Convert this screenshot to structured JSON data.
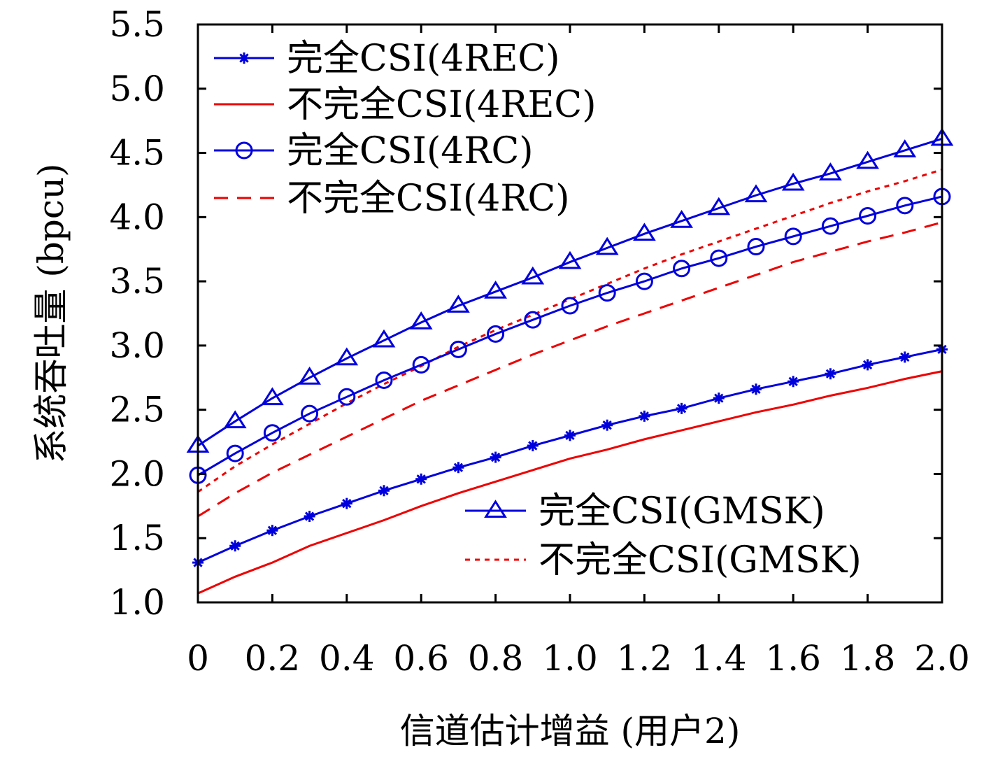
{
  "chart_data": {
    "type": "line",
    "xlabel": "信道估计增益 (用户2)",
    "ylabel": "系统吞吐量 (bpcu)",
    "xlim": [
      0,
      2.0
    ],
    "ylim": [
      1.0,
      5.5
    ],
    "x_ticks": [
      "0",
      "0.2",
      "0.4",
      "0.6",
      "0.8",
      "1.0",
      "1.2",
      "1.4",
      "1.6",
      "1.8",
      "2.0"
    ],
    "y_ticks": [
      "1.0",
      "1.5",
      "2.0",
      "2.5",
      "3.0",
      "3.5",
      "4.0",
      "4.5",
      "5.0",
      "5.5"
    ],
    "legend_top_left": [
      "完全CSI(4REC)",
      "不完全CSI(4REC)",
      "完全CSI(4RC)",
      "不完全CSI(4RC)"
    ],
    "legend_bottom_right": [
      "完全CSI(GMSK)",
      "不完全CSI(GMSK)"
    ],
    "x": [
      0,
      0.1,
      0.2,
      0.3,
      0.4,
      0.5,
      0.6,
      0.7,
      0.8,
      0.9,
      1.0,
      1.1,
      1.2,
      1.3,
      1.4,
      1.5,
      1.6,
      1.7,
      1.8,
      1.9,
      2.0
    ],
    "series": [
      {
        "name": "完全CSI(GMSK)",
        "color": "#0000dd",
        "style": "solid",
        "marker": "triangle",
        "values": [
          2.22,
          2.41,
          2.59,
          2.75,
          2.9,
          3.04,
          3.18,
          3.31,
          3.42,
          3.53,
          3.65,
          3.76,
          3.87,
          3.97,
          4.07,
          4.17,
          4.26,
          4.34,
          4.43,
          4.52,
          4.61
        ]
      },
      {
        "name": "不完全CSI(GMSK)",
        "color": "#ee0000",
        "style": "dotted",
        "marker": "none",
        "values": [
          1.86,
          2.06,
          2.23,
          2.39,
          2.55,
          2.7,
          2.84,
          2.99,
          3.12,
          3.24,
          3.36,
          3.48,
          3.6,
          3.71,
          3.81,
          3.91,
          4.01,
          4.11,
          4.2,
          4.28,
          4.37
        ]
      },
      {
        "name": "完全CSI(4RC)",
        "color": "#0000dd",
        "style": "solid",
        "marker": "circle",
        "values": [
          1.99,
          2.16,
          2.32,
          2.47,
          2.6,
          2.73,
          2.85,
          2.97,
          3.09,
          3.2,
          3.31,
          3.41,
          3.5,
          3.6,
          3.68,
          3.77,
          3.85,
          3.93,
          4.01,
          4.09,
          4.16
        ]
      },
      {
        "name": "不完全CSI(4RC)",
        "color": "#ee0000",
        "style": "dashed",
        "marker": "none",
        "values": [
          1.67,
          1.85,
          2.01,
          2.15,
          2.29,
          2.43,
          2.57,
          2.69,
          2.81,
          2.93,
          3.04,
          3.15,
          3.25,
          3.35,
          3.45,
          3.55,
          3.65,
          3.73,
          3.81,
          3.88,
          3.96
        ]
      },
      {
        "name": "完全CSI(4REC)",
        "color": "#0000dd",
        "style": "solid",
        "marker": "star",
        "values": [
          1.31,
          1.44,
          1.56,
          1.67,
          1.77,
          1.87,
          1.96,
          2.05,
          2.13,
          2.22,
          2.3,
          2.38,
          2.45,
          2.51,
          2.59,
          2.66,
          2.72,
          2.78,
          2.85,
          2.91,
          2.97
        ]
      },
      {
        "name": "不完全CSI(4REC)",
        "color": "#ee0000",
        "style": "solid",
        "marker": "none",
        "values": [
          1.07,
          1.2,
          1.31,
          1.44,
          1.54,
          1.64,
          1.75,
          1.85,
          1.94,
          2.03,
          2.12,
          2.19,
          2.27,
          2.34,
          2.41,
          2.48,
          2.54,
          2.61,
          2.67,
          2.74,
          2.8
        ]
      }
    ],
    "grid": false
  }
}
